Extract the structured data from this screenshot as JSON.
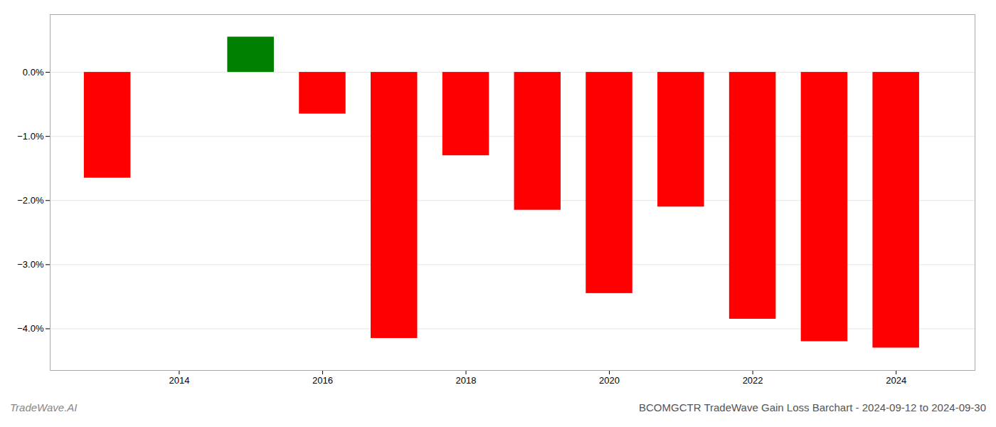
{
  "chart_data": {
    "type": "bar",
    "title": "BCOMGCTR TradeWave Gain Loss Barchart - 2024-09-12 to 2024-09-30",
    "annotations": [
      "TradeWave.AI"
    ],
    "x": [
      2013,
      2015,
      2016,
      2017,
      2018,
      2019,
      2020,
      2021,
      2022,
      2023,
      2024
    ],
    "values": [
      -1.65,
      0.55,
      -0.65,
      -4.15,
      -1.3,
      -2.15,
      -3.45,
      -2.1,
      -3.85,
      -4.2,
      -4.3
    ],
    "colors": [
      "#ff0000",
      "#008000",
      "#ff0000",
      "#ff0000",
      "#ff0000",
      "#ff0000",
      "#ff0000",
      "#ff0000",
      "#ff0000",
      "#ff0000",
      "#ff0000"
    ],
    "xlim": [
      2012.2,
      2025.1
    ],
    "xticks": [
      2014,
      2016,
      2018,
      2020,
      2022,
      2024
    ],
    "ylim": [
      -4.65,
      0.9
    ],
    "yticks": [
      {
        "value": 0.0,
        "label": "0.0%"
      },
      {
        "value": -1.0,
        "label": "−1.0%"
      },
      {
        "value": -2.0,
        "label": "−2.0%"
      },
      {
        "value": -3.0,
        "label": "−3.0%"
      },
      {
        "value": -4.0,
        "label": "−4.0%"
      }
    ],
    "grid": true
  }
}
